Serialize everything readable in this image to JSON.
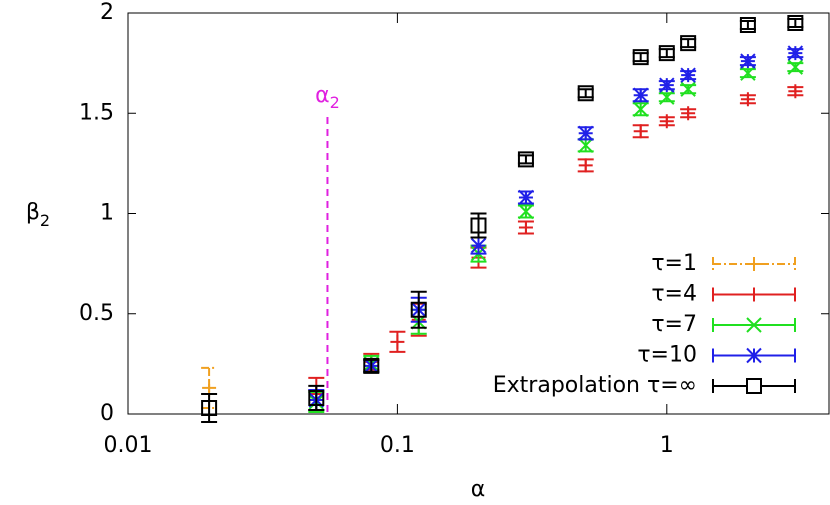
{
  "chart_data": {
    "type": "errorbar",
    "xlabel": "α",
    "ylabel": {
      "text": "β",
      "sub": "2"
    },
    "xscale": "log",
    "xlim": [
      0.01,
      4
    ],
    "xticks": [
      0.01,
      0.1,
      1
    ],
    "ylim": [
      0,
      2
    ],
    "yticks": [
      0,
      0.5,
      1,
      1.5,
      2
    ],
    "legend": "bottom-right",
    "annotation": {
      "text": "α",
      "sub": "2",
      "x": 0.055,
      "color": "#e020e0"
    },
    "x": [
      0.02,
      0.05,
      0.08,
      0.1,
      0.12,
      0.2,
      0.3,
      0.5,
      0.8,
      1,
      1.2,
      2,
      3
    ],
    "series": [
      {
        "name": "τ=1",
        "color": "#f0a020",
        "marker": "plus",
        "dash": "dashdot",
        "values": [
          0.13,
          0.07,
          null,
          null,
          null,
          null,
          null,
          null,
          null,
          null,
          null,
          null,
          null
        ],
        "errors": [
          0.1,
          0.05,
          null,
          null,
          null,
          null,
          null,
          null,
          null,
          null,
          null,
          null,
          null
        ]
      },
      {
        "name": "τ=4",
        "color": "#e02020",
        "marker": "plus",
        "dash": "solid",
        "values": [
          null,
          0.1,
          0.26,
          0.36,
          0.47,
          0.78,
          0.93,
          1.24,
          1.41,
          1.46,
          1.5,
          1.57,
          1.61
        ],
        "errors": [
          null,
          0.08,
          0.04,
          0.05,
          0.08,
          0.05,
          0.03,
          0.03,
          0.03,
          0.02,
          0.02,
          0.02,
          0.02
        ]
      },
      {
        "name": "τ=7",
        "color": "#20e020",
        "marker": "cross",
        "dash": "solid",
        "values": [
          null,
          0.06,
          0.25,
          null,
          0.46,
          0.8,
          1.01,
          1.34,
          1.52,
          1.58,
          1.62,
          1.7,
          1.73
        ],
        "errors": [
          null,
          0.05,
          0.04,
          null,
          0.06,
          0.04,
          0.03,
          0.03,
          0.03,
          0.02,
          0.02,
          0.02,
          0.02
        ]
      },
      {
        "name": "τ=10",
        "color": "#2020e8",
        "marker": "star",
        "dash": "solid",
        "values": [
          null,
          0.07,
          0.24,
          null,
          0.52,
          0.84,
          1.08,
          1.4,
          1.59,
          1.64,
          1.69,
          1.76,
          1.8
        ],
        "errors": [
          null,
          0.05,
          0.03,
          null,
          0.06,
          0.04,
          0.03,
          0.03,
          0.03,
          0.02,
          0.02,
          0.02,
          0.02
        ]
      },
      {
        "name": "Extrapolation τ=∞",
        "color": "#000000",
        "marker": "square",
        "dash": "solid",
        "values": [
          0.03,
          0.08,
          0.24,
          null,
          0.52,
          0.94,
          1.27,
          1.6,
          1.78,
          1.8,
          1.85,
          1.94,
          1.95
        ],
        "errors": [
          0.07,
          0.06,
          0.03,
          null,
          0.09,
          0.06,
          0.02,
          0.02,
          0.02,
          0.02,
          0.02,
          0.02,
          0.02
        ]
      }
    ]
  }
}
